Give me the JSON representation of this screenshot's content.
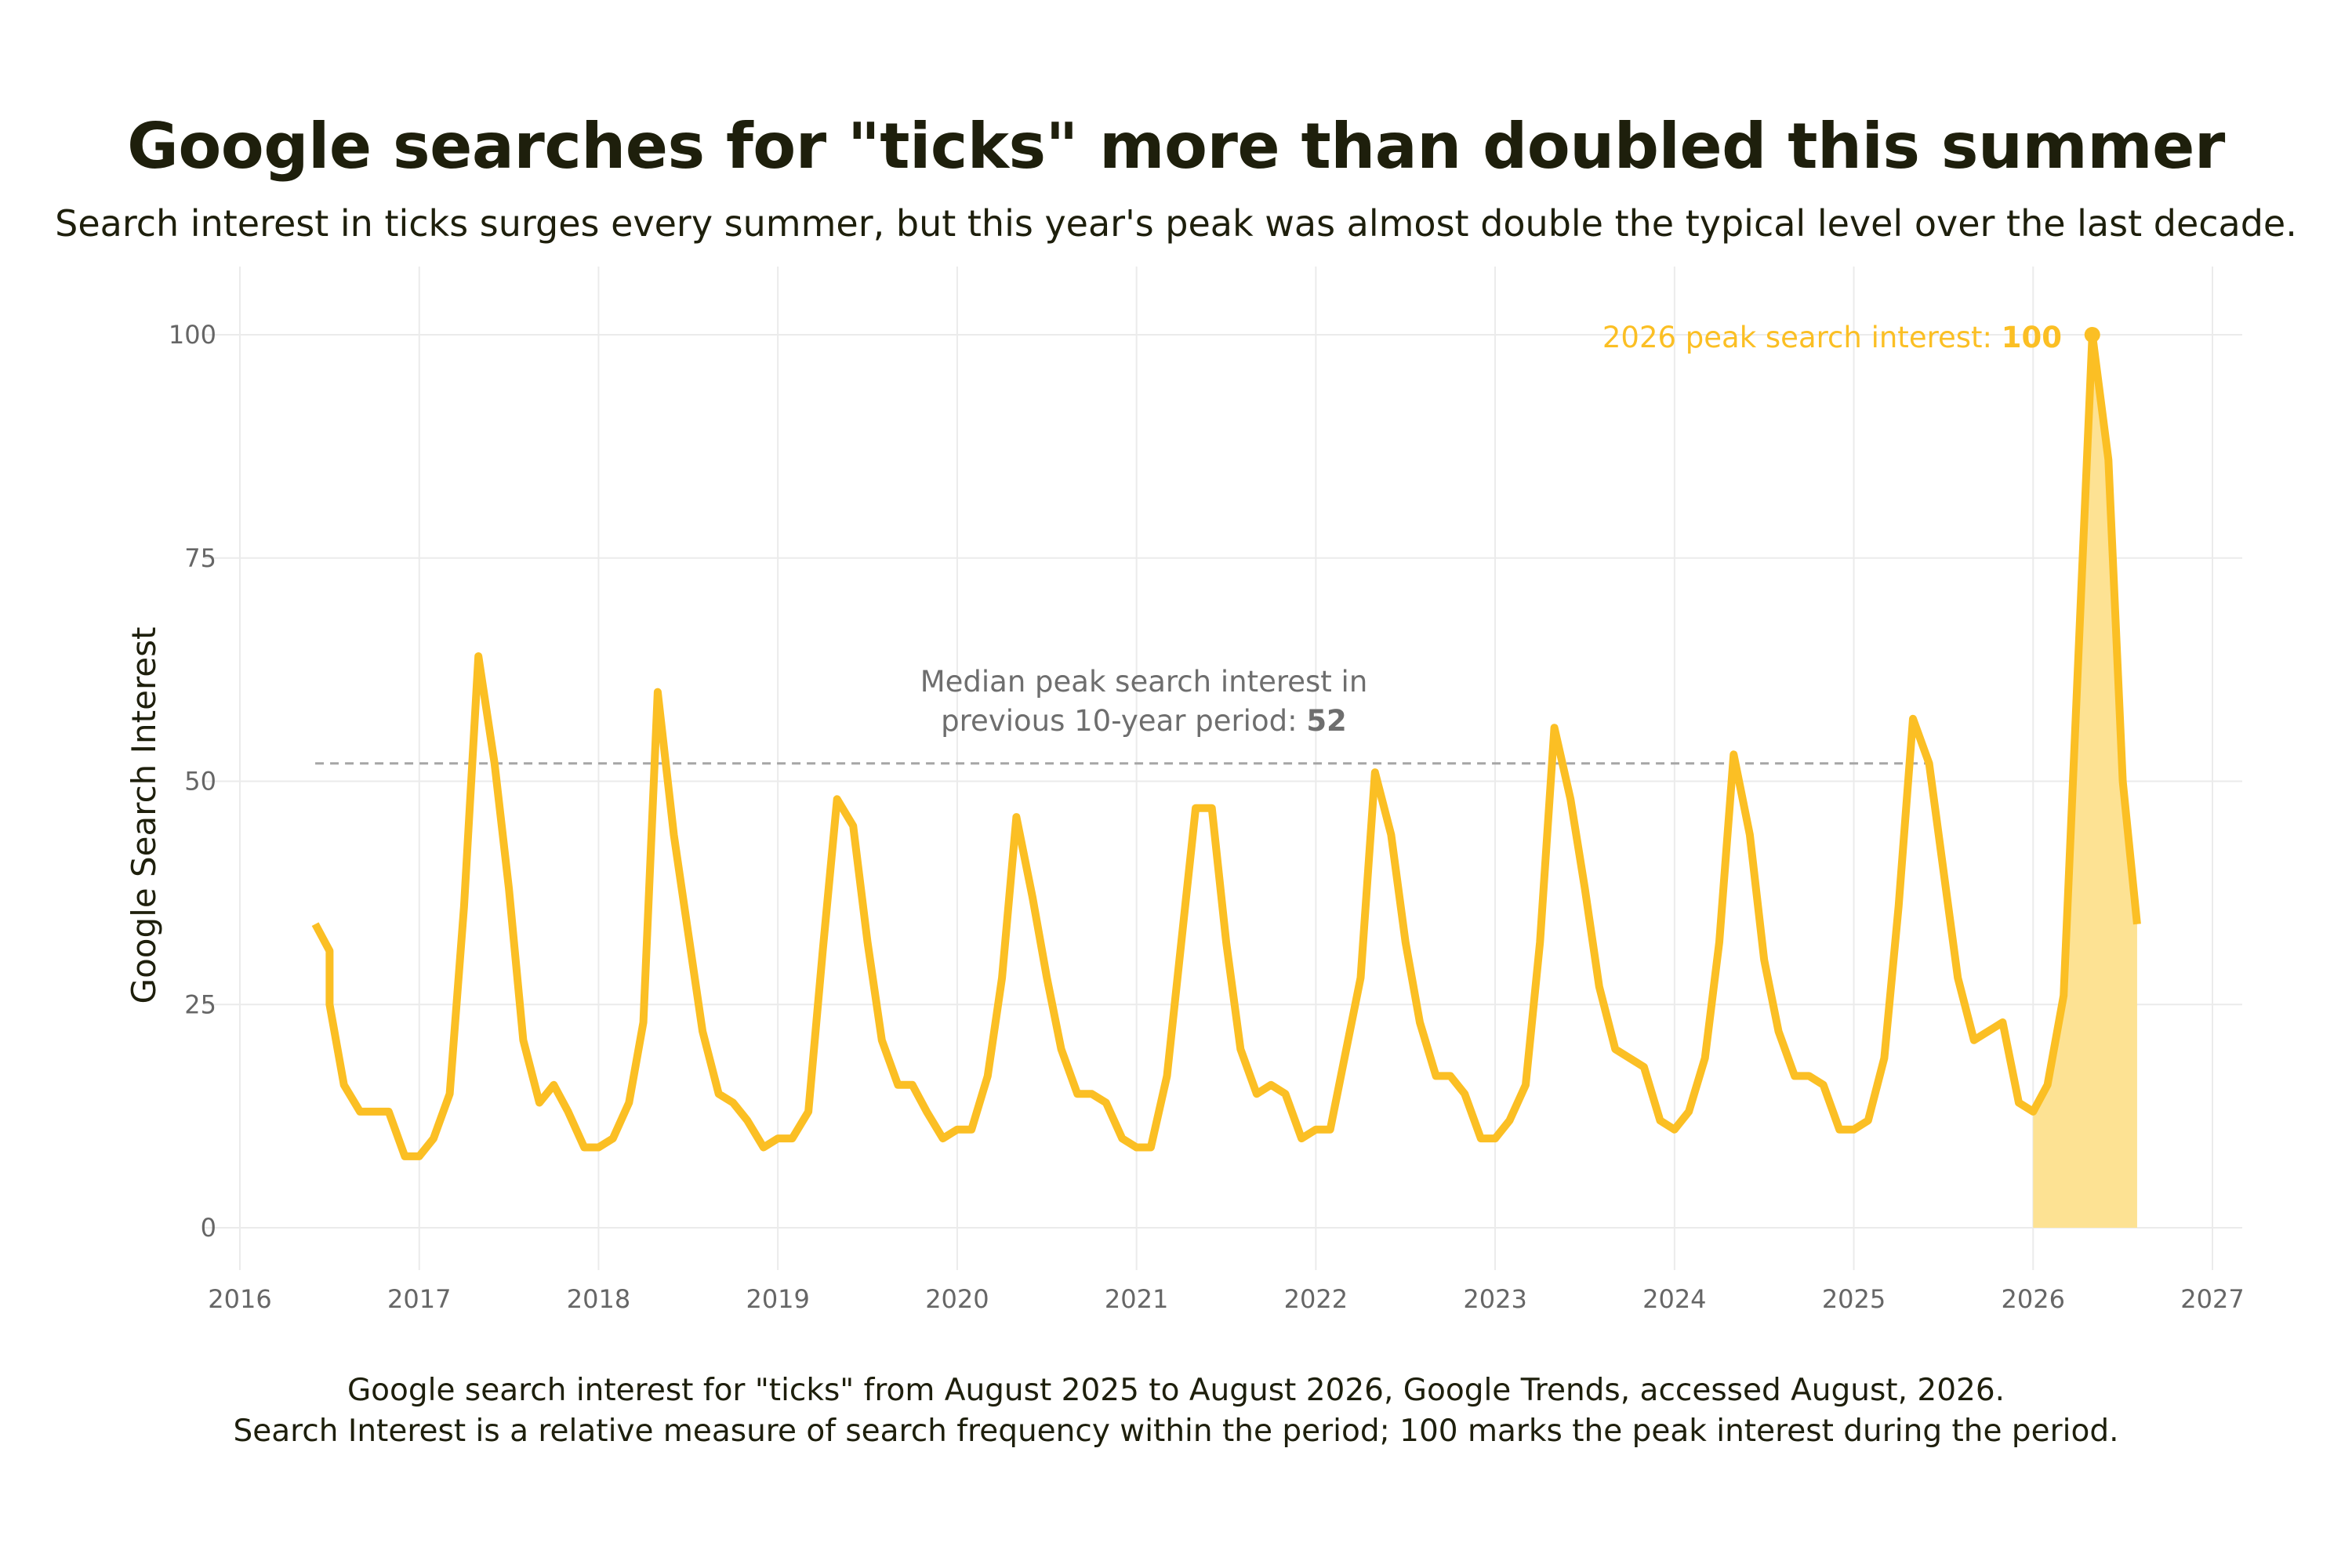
{
  "chart_data": {
    "type": "area",
    "title": "Google searches for \"ticks\" more than doubled this summer",
    "subtitle": "Search interest in ticks surges every summer, but this year's peak was almost double the typical level over the last decade.",
    "xlabel": "",
    "ylabel": "Google Search Interest",
    "xlim": [
      2016,
      2027
    ],
    "ylim": [
      0,
      100
    ],
    "x_ticks": [
      "2016",
      "2017",
      "2018",
      "2019",
      "2020",
      "2021",
      "2022",
      "2023",
      "2024",
      "2025",
      "2026",
      "2027"
    ],
    "y_ticks": [
      "0",
      "25",
      "50",
      "75",
      "100"
    ],
    "grid": true,
    "series": [
      {
        "color": "#fbbf24",
        "x": [
          2016.42,
          2016.5,
          2016.5,
          2016.58,
          2016.67,
          2016.75,
          2016.83,
          2016.92,
          2017.0,
          2017.08,
          2017.17,
          2017.25,
          2017.33,
          2017.42,
          2017.5,
          2017.58,
          2017.67,
          2017.75,
          2017.83,
          2017.92,
          2018.0,
          2018.08,
          2018.17,
          2018.25,
          2018.33,
          2018.42,
          2018.5,
          2018.58,
          2018.67,
          2018.75,
          2018.83,
          2018.92,
          2019.0,
          2019.08,
          2019.17,
          2019.25,
          2019.33,
          2019.42,
          2019.5,
          2019.58,
          2019.67,
          2019.75,
          2019.83,
          2019.92,
          2020.0,
          2020.08,
          2020.17,
          2020.25,
          2020.33,
          2020.42,
          2020.5,
          2020.58,
          2020.67,
          2020.75,
          2020.83,
          2020.92,
          2021.0,
          2021.08,
          2021.17,
          2021.25,
          2021.33,
          2021.42,
          2021.5,
          2021.58,
          2021.67,
          2021.75,
          2021.83,
          2021.92,
          2022.0,
          2022.08,
          2022.17,
          2022.25,
          2022.33,
          2022.42,
          2022.5,
          2022.58,
          2022.67,
          2022.75,
          2022.83,
          2022.92,
          2023.0,
          2023.08,
          2023.17,
          2023.25,
          2023.33,
          2023.42,
          2023.5,
          2023.58,
          2023.67,
          2023.75,
          2023.83,
          2023.92,
          2024.0,
          2024.08,
          2024.17,
          2024.25,
          2024.33,
          2024.42,
          2024.5,
          2024.58,
          2024.67,
          2024.75,
          2024.83,
          2024.92,
          2025.0,
          2025.08,
          2025.17,
          2025.25,
          2025.33,
          2025.42,
          2025.5,
          2025.58,
          2025.67,
          2025.75,
          2025.83,
          2025.92,
          2026.0,
          2026.08,
          2026.17,
          2026.25,
          2026.33,
          2026.42,
          2026.5,
          2026.58
        ],
        "y": [
          34,
          31,
          25,
          16,
          13,
          13,
          13,
          8,
          8,
          10,
          15,
          36,
          64,
          52,
          38,
          21,
          14,
          16,
          13,
          9,
          9,
          10,
          14,
          23,
          60,
          44,
          33,
          22,
          15,
          14,
          12,
          9,
          10,
          10,
          13,
          31,
          48,
          45,
          32,
          21,
          16,
          16,
          13,
          10,
          11,
          11,
          17,
          28,
          46,
          37,
          28,
          20,
          15,
          15,
          14,
          10,
          9,
          9,
          17,
          32,
          47,
          47,
          32,
          20,
          15,
          16,
          15,
          10,
          11,
          11,
          20,
          28,
          51,
          44,
          32,
          23,
          17,
          17,
          15,
          10,
          10,
          12,
          16,
          32,
          56,
          48,
          38,
          27,
          20,
          19,
          18,
          12,
          11,
          13,
          19,
          32,
          53,
          44,
          30,
          22,
          17,
          17,
          16,
          11,
          11,
          12,
          19,
          36,
          57,
          52,
          40,
          28,
          21,
          22,
          23,
          14,
          13,
          16,
          26,
          63,
          100,
          86,
          50,
          34
        ]
      }
    ],
    "highlight_range": [
      2026.0,
      2026.58
    ],
    "median_peak": 52,
    "median_line_x": [
      2016.42,
      2025.42
    ],
    "median_annotation": {
      "line1": "Median peak search interest in",
      "line2": "previous 10-year period: ",
      "value": "52"
    },
    "peak_annotation": {
      "text": "2026 peak search interest: ",
      "value": "100",
      "x": 2026.33,
      "y": 100
    },
    "caption": [
      "Google search interest for \"ticks\" from August 2025 to August 2026, Google Trends, accessed August, 2026.",
      "Search Interest is a relative measure of search frequency within the period; 100 marks the peak interest during the period."
    ]
  }
}
